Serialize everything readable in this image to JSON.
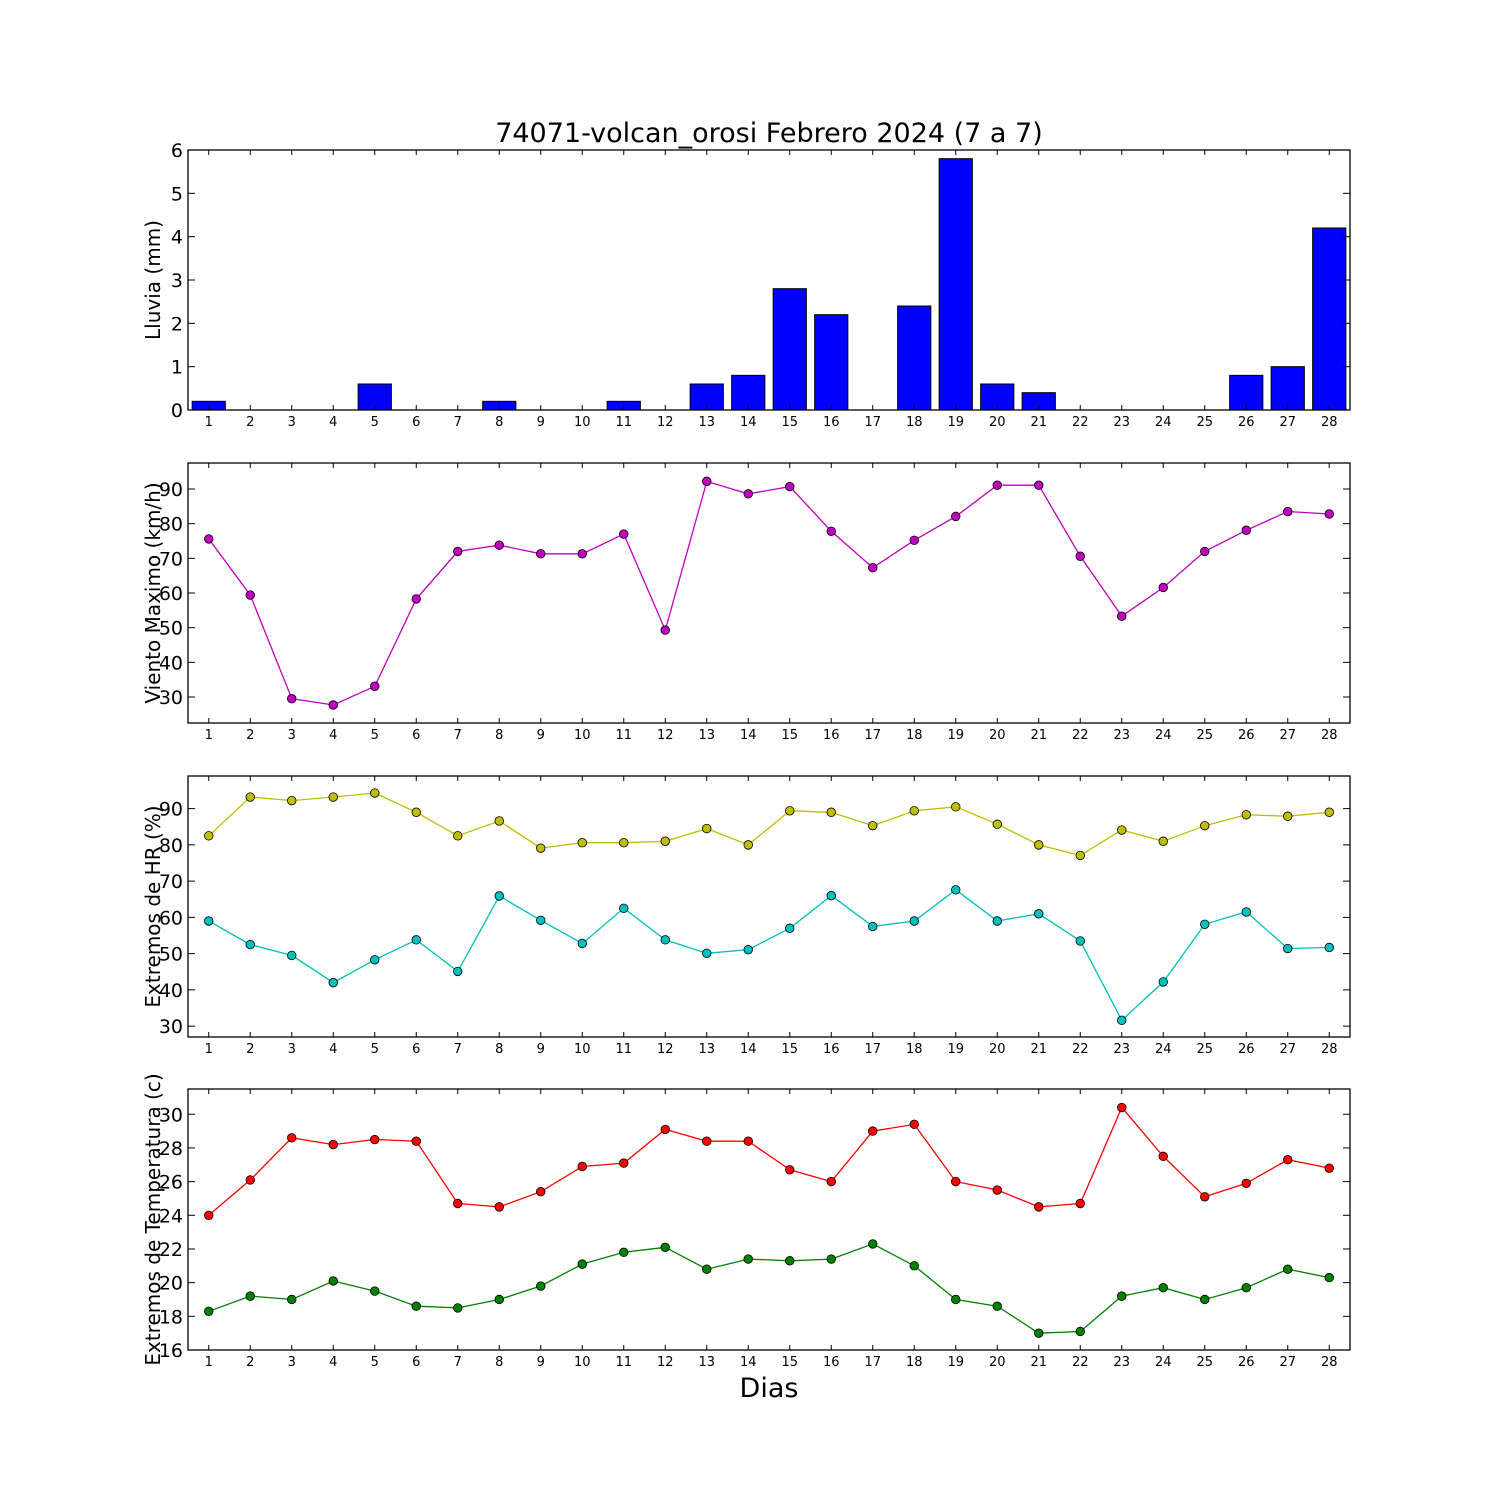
{
  "title": "74071-volcan_orosi Febrero 2024  (7 a 7)",
  "xlabel": "Dias",
  "chart_data": [
    {
      "type": "bar",
      "ylabel": "Lluvia (mm)",
      "ylim": [
        0,
        6
      ],
      "yticks": [
        0,
        1,
        2,
        3,
        4,
        5,
        6
      ],
      "x": [
        1,
        2,
        3,
        4,
        5,
        6,
        7,
        8,
        9,
        10,
        11,
        12,
        13,
        14,
        15,
        16,
        17,
        18,
        19,
        20,
        21,
        22,
        23,
        24,
        25,
        26,
        27,
        28
      ],
      "series": [
        {
          "color": "#0000ff",
          "values": [
            0.2,
            0,
            0,
            0,
            0.6,
            0,
            0,
            0.2,
            0,
            0,
            0.2,
            0,
            0.6,
            0.8,
            2.8,
            2.2,
            0,
            2.4,
            5.8,
            0.6,
            0.4,
            0,
            0,
            0,
            0,
            0.8,
            1.0,
            4.2
          ]
        }
      ]
    },
    {
      "type": "line",
      "ylabel": "Viento Maximo (km/h)",
      "ylim": [
        22.5,
        97.5
      ],
      "yticks": [
        30,
        40,
        50,
        60,
        70,
        80,
        90
      ],
      "x": [
        1,
        2,
        3,
        4,
        5,
        6,
        7,
        8,
        9,
        10,
        11,
        12,
        13,
        14,
        15,
        16,
        17,
        18,
        19,
        20,
        21,
        22,
        23,
        24,
        25,
        26,
        27,
        28
      ],
      "series": [
        {
          "color": "#bf00bf",
          "values": [
            75.6,
            59.4,
            29.5,
            27.7,
            33.1,
            58.3,
            72.0,
            73.8,
            71.3,
            71.3,
            77.0,
            49.3,
            92.2,
            88.6,
            90.7,
            77.8,
            67.3,
            75.2,
            82.1,
            91.1,
            91.1,
            70.6,
            53.3,
            61.6,
            72.0,
            78.1,
            83.5,
            82.8
          ]
        }
      ]
    },
    {
      "type": "line",
      "ylabel": "Extremos de HR (%)",
      "ylim": [
        27,
        99
      ],
      "yticks": [
        30,
        40,
        50,
        60,
        70,
        80,
        90
      ],
      "x": [
        1,
        2,
        3,
        4,
        5,
        6,
        7,
        8,
        9,
        10,
        11,
        12,
        13,
        14,
        15,
        16,
        17,
        18,
        19,
        20,
        21,
        22,
        23,
        24,
        25,
        26,
        27,
        28
      ],
      "series": [
        {
          "color": "#bfbf00",
          "values": [
            82.5,
            93.2,
            92.2,
            93.2,
            94.3,
            89.0,
            82.5,
            86.6,
            79.1,
            80.6,
            80.6,
            81.0,
            84.5,
            80.0,
            89.4,
            89.0,
            85.3,
            89.4,
            90.5,
            85.7,
            80.0,
            77.1,
            84.1,
            81.0,
            85.3,
            88.3,
            87.9,
            89.0
          ]
        },
        {
          "color": "#00bfbf",
          "values": [
            59.0,
            52.5,
            49.5,
            42.0,
            48.3,
            53.8,
            45.1,
            65.9,
            59.2,
            52.8,
            62.5,
            53.8,
            50.1,
            51.1,
            57.0,
            66.0,
            57.5,
            59.0,
            67.6,
            59.0,
            61.0,
            53.5,
            31.6,
            42.2,
            58.1,
            61.5,
            51.4,
            51.7
          ]
        }
      ]
    },
    {
      "type": "line",
      "ylabel": "Extremos de Temperatura (c)",
      "ylim": [
        16,
        31.5
      ],
      "yticks": [
        16,
        18,
        20,
        22,
        24,
        26,
        28,
        30
      ],
      "x": [
        1,
        2,
        3,
        4,
        5,
        6,
        7,
        8,
        9,
        10,
        11,
        12,
        13,
        14,
        15,
        16,
        17,
        18,
        19,
        20,
        21,
        22,
        23,
        24,
        25,
        26,
        27,
        28
      ],
      "series": [
        {
          "color": "#ff0000",
          "values": [
            24.0,
            26.1,
            28.6,
            28.2,
            28.5,
            28.4,
            24.7,
            24.5,
            25.4,
            26.9,
            27.1,
            29.1,
            28.4,
            28.4,
            26.7,
            26.0,
            29.0,
            29.4,
            26.0,
            25.5,
            24.5,
            24.7,
            30.4,
            27.5,
            25.1,
            25.9,
            27.3,
            26.8
          ]
        },
        {
          "color": "#008000",
          "values": [
            18.3,
            19.2,
            19.0,
            20.1,
            19.5,
            18.6,
            18.5,
            19.0,
            19.8,
            21.1,
            21.8,
            22.1,
            20.8,
            21.4,
            21.3,
            21.4,
            22.3,
            21.0,
            19.0,
            18.6,
            17.0,
            17.1,
            19.2,
            19.7,
            19.0,
            19.7,
            20.8,
            20.3
          ]
        }
      ]
    }
  ]
}
